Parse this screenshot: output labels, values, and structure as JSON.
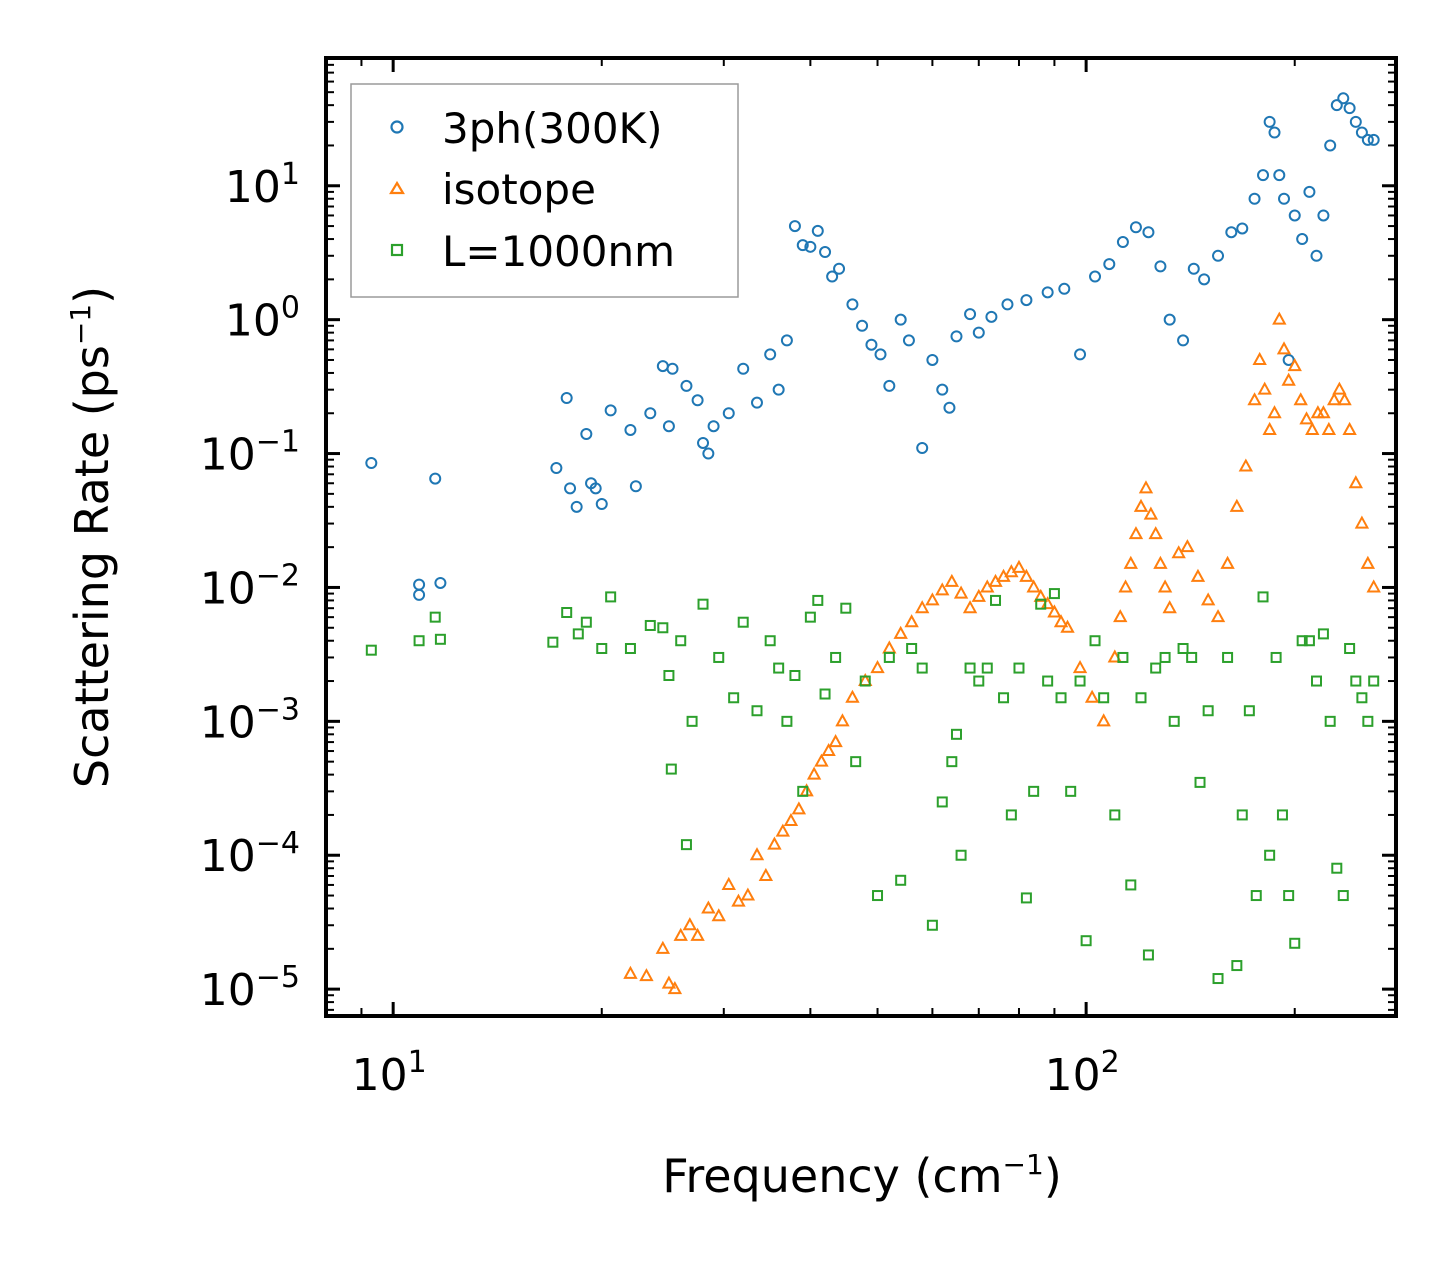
{
  "chart_data": {
    "type": "scatter",
    "title": "",
    "xlabel": "Frequency (cm",
    "xlabel_exp": "−1",
    "xlabel_close": ")",
    "ylabel": "Scattering Rate (ps",
    "ylabel_exp": "−1",
    "ylabel_close": ")",
    "xscale": "log",
    "yscale": "log",
    "xlim": [
      8,
      280
    ],
    "ylim": [
      6.3e-06,
      90
    ],
    "grid": false,
    "legend_position": "top-left",
    "x_ticks": [
      {
        "value": 10,
        "base": "10",
        "exp": "1"
      },
      {
        "value": 100,
        "base": "10",
        "exp": "2"
      }
    ],
    "y_ticks": [
      {
        "value": 10,
        "base": "10",
        "exp": "1"
      },
      {
        "value": 1,
        "base": "10",
        "exp": "0"
      },
      {
        "value": 0.1,
        "base": "10",
        "exp": "−1"
      },
      {
        "value": 0.01,
        "base": "10",
        "exp": "−2"
      },
      {
        "value": 0.001,
        "base": "10",
        "exp": "−3"
      },
      {
        "value": 0.0001,
        "base": "10",
        "exp": "−4"
      },
      {
        "value": 1e-05,
        "base": "10",
        "exp": "−5"
      }
    ],
    "series": [
      {
        "name": "3ph(300K)",
        "marker": "circle",
        "color": "#1f77b4",
        "points": [
          [
            9.3,
            0.085
          ],
          [
            10.9,
            0.0105
          ],
          [
            10.9,
            0.0088
          ],
          [
            11.5,
            0.065
          ],
          [
            11.7,
            0.0108
          ],
          [
            17.2,
            0.078
          ],
          [
            17.8,
            0.26
          ],
          [
            18.0,
            0.055
          ],
          [
            18.4,
            0.04
          ],
          [
            19.0,
            0.14
          ],
          [
            19.3,
            0.06
          ],
          [
            19.6,
            0.055
          ],
          [
            20.0,
            0.042
          ],
          [
            20.6,
            0.21
          ],
          [
            22.0,
            0.15
          ],
          [
            22.4,
            0.057
          ],
          [
            23.5,
            0.2
          ],
          [
            24.5,
            0.45
          ],
          [
            25.0,
            0.16
          ],
          [
            25.3,
            0.43
          ],
          [
            26.5,
            0.32
          ],
          [
            27.5,
            0.25
          ],
          [
            28.0,
            0.12
          ],
          [
            28.5,
            0.1
          ],
          [
            29.0,
            0.16
          ],
          [
            30.5,
            0.2
          ],
          [
            32.0,
            0.43
          ],
          [
            33.5,
            0.24
          ],
          [
            35.0,
            0.55
          ],
          [
            36.0,
            0.3
          ],
          [
            37.0,
            0.7
          ],
          [
            38.0,
            5.0
          ],
          [
            39.0,
            3.6
          ],
          [
            40.0,
            3.5
          ],
          [
            41.0,
            4.6
          ],
          [
            42.0,
            3.2
          ],
          [
            43.0,
            2.1
          ],
          [
            44.0,
            2.4
          ],
          [
            46.0,
            1.3
          ],
          [
            47.5,
            0.9
          ],
          [
            49.0,
            0.65
          ],
          [
            50.5,
            0.55
          ],
          [
            52.0,
            0.32
          ],
          [
            54.0,
            1.0
          ],
          [
            55.5,
            0.7
          ],
          [
            58.0,
            0.11
          ],
          [
            60.0,
            0.5
          ],
          [
            62.0,
            0.3
          ],
          [
            63.5,
            0.22
          ],
          [
            65.0,
            0.75
          ],
          [
            68.0,
            1.1
          ],
          [
            70.0,
            0.8
          ],
          [
            73.0,
            1.05
          ],
          [
            77.0,
            1.3
          ],
          [
            82.0,
            1.4
          ],
          [
            88.0,
            1.6
          ],
          [
            93.0,
            1.7
          ],
          [
            98.0,
            0.55
          ],
          [
            103.0,
            2.1
          ],
          [
            108.0,
            2.6
          ],
          [
            113.0,
            3.8
          ],
          [
            118.0,
            4.9
          ],
          [
            123.0,
            4.5
          ],
          [
            128.0,
            2.5
          ],
          [
            132.0,
            1.0
          ],
          [
            138.0,
            0.7
          ],
          [
            143.0,
            2.4
          ],
          [
            148.0,
            2.0
          ],
          [
            155.0,
            3.0
          ],
          [
            162.0,
            4.5
          ],
          [
            168.0,
            4.8
          ],
          [
            175.0,
            8.0
          ],
          [
            180.0,
            12
          ],
          [
            184.0,
            30
          ],
          [
            187.0,
            25
          ],
          [
            190.0,
            12
          ],
          [
            193.0,
            8
          ],
          [
            196.0,
            0.5
          ],
          [
            200.0,
            6
          ],
          [
            205.0,
            4
          ],
          [
            210.0,
            9
          ],
          [
            215.0,
            3
          ],
          [
            220.0,
            6
          ],
          [
            225.0,
            20
          ],
          [
            230.0,
            40
          ],
          [
            235.0,
            45
          ],
          [
            240.0,
            38
          ],
          [
            245.0,
            30
          ],
          [
            250.0,
            25
          ],
          [
            255.0,
            22
          ],
          [
            260.0,
            22
          ]
        ]
      },
      {
        "name": "isotope",
        "marker": "triangle",
        "color": "#ff7f0e",
        "points": [
          [
            22.0,
            1.3e-05
          ],
          [
            23.2,
            1.25e-05
          ],
          [
            24.5,
            2e-05
          ],
          [
            25.0,
            1.1e-05
          ],
          [
            25.5,
            1e-05
          ],
          [
            26.0,
            2.5e-05
          ],
          [
            26.8,
            3e-05
          ],
          [
            27.5,
            2.5e-05
          ],
          [
            28.5,
            4e-05
          ],
          [
            29.5,
            3.5e-05
          ],
          [
            30.5,
            6e-05
          ],
          [
            31.5,
            4.5e-05
          ],
          [
            32.5,
            5e-05
          ],
          [
            33.5,
            0.0001
          ],
          [
            34.5,
            7e-05
          ],
          [
            35.5,
            0.00012
          ],
          [
            36.5,
            0.00015
          ],
          [
            37.5,
            0.00018
          ],
          [
            38.5,
            0.00022
          ],
          [
            39.5,
            0.0003
          ],
          [
            40.5,
            0.0004
          ],
          [
            41.5,
            0.0005
          ],
          [
            42.5,
            0.0006
          ],
          [
            43.5,
            0.0007
          ],
          [
            44.5,
            0.001
          ],
          [
            46.0,
            0.0015
          ],
          [
            48.0,
            0.002
          ],
          [
            50.0,
            0.0025
          ],
          [
            52.0,
            0.0035
          ],
          [
            54.0,
            0.0045
          ],
          [
            56.0,
            0.0055
          ],
          [
            58.0,
            0.007
          ],
          [
            60.0,
            0.008
          ],
          [
            62.0,
            0.0095
          ],
          [
            64.0,
            0.011
          ],
          [
            66.0,
            0.009
          ],
          [
            68.0,
            0.007
          ],
          [
            70.0,
            0.0085
          ],
          [
            72.0,
            0.01
          ],
          [
            74.0,
            0.011
          ],
          [
            76.0,
            0.012
          ],
          [
            78.0,
            0.013
          ],
          [
            80.0,
            0.014
          ],
          [
            82.0,
            0.012
          ],
          [
            84.0,
            0.01
          ],
          [
            86.0,
            0.0085
          ],
          [
            88.0,
            0.0075
          ],
          [
            90.0,
            0.0065
          ],
          [
            92.0,
            0.0055
          ],
          [
            94.0,
            0.005
          ],
          [
            98.0,
            0.0025
          ],
          [
            102.0,
            0.0015
          ],
          [
            106.0,
            0.001
          ],
          [
            110.0,
            0.003
          ],
          [
            112.0,
            0.006
          ],
          [
            114.0,
            0.01
          ],
          [
            116.0,
            0.015
          ],
          [
            118.0,
            0.025
          ],
          [
            120.0,
            0.04
          ],
          [
            122.0,
            0.055
          ],
          [
            124.0,
            0.035
          ],
          [
            126.0,
            0.025
          ],
          [
            128.0,
            0.015
          ],
          [
            130.0,
            0.01
          ],
          [
            132.0,
            0.007
          ],
          [
            136.0,
            0.018
          ],
          [
            140.0,
            0.02
          ],
          [
            145.0,
            0.012
          ],
          [
            150.0,
            0.008
          ],
          [
            155.0,
            0.006
          ],
          [
            160.0,
            0.015
          ],
          [
            165.0,
            0.04
          ],
          [
            170.0,
            0.08
          ],
          [
            175.0,
            0.25
          ],
          [
            178.0,
            0.5
          ],
          [
            181.0,
            0.3
          ],
          [
            184.0,
            0.15
          ],
          [
            187.0,
            0.2
          ],
          [
            190.0,
            1.0
          ],
          [
            193.0,
            0.6
          ],
          [
            196.0,
            0.35
          ],
          [
            200.0,
            0.45
          ],
          [
            204.0,
            0.25
          ],
          [
            208.0,
            0.18
          ],
          [
            212.0,
            0.15
          ],
          [
            216.0,
            0.2
          ],
          [
            220.0,
            0.2
          ],
          [
            224.0,
            0.15
          ],
          [
            228.0,
            0.25
          ],
          [
            232.0,
            0.3
          ],
          [
            236.0,
            0.25
          ],
          [
            240.0,
            0.15
          ],
          [
            245.0,
            0.06
          ],
          [
            250.0,
            0.03
          ],
          [
            255.0,
            0.015
          ],
          [
            260.0,
            0.01
          ]
        ]
      },
      {
        "name": "L=1000nm",
        "marker": "square",
        "color": "#2ca02c",
        "points": [
          [
            9.3,
            0.0034
          ],
          [
            10.9,
            0.004
          ],
          [
            11.5,
            0.006
          ],
          [
            11.7,
            0.0041
          ],
          [
            17.0,
            0.0039
          ],
          [
            17.8,
            0.0065
          ],
          [
            18.5,
            0.0045
          ],
          [
            19.0,
            0.0055
          ],
          [
            20.0,
            0.0035
          ],
          [
            20.6,
            0.0085
          ],
          [
            22.0,
            0.0035
          ],
          [
            23.5,
            0.0052
          ],
          [
            24.5,
            0.005
          ],
          [
            25.0,
            0.0022
          ],
          [
            25.2,
            0.00044
          ],
          [
            26.0,
            0.004
          ],
          [
            26.5,
            0.00012
          ],
          [
            27.0,
            0.001
          ],
          [
            28.0,
            0.0075
          ],
          [
            29.5,
            0.003
          ],
          [
            31.0,
            0.0015
          ],
          [
            32.0,
            0.0055
          ],
          [
            33.5,
            0.0012
          ],
          [
            35.0,
            0.004
          ],
          [
            36.0,
            0.0025
          ],
          [
            37.0,
            0.001
          ],
          [
            38.0,
            0.0022
          ],
          [
            39.0,
            0.0003
          ],
          [
            40.0,
            0.006
          ],
          [
            41.0,
            0.008
          ],
          [
            42.0,
            0.0016
          ],
          [
            43.5,
            0.003
          ],
          [
            45.0,
            0.007
          ],
          [
            46.5,
            0.0005
          ],
          [
            48.0,
            0.002
          ],
          [
            50.0,
            5e-05
          ],
          [
            52.0,
            0.003
          ],
          [
            54.0,
            6.5e-05
          ],
          [
            56.0,
            0.0035
          ],
          [
            58.0,
            0.0025
          ],
          [
            60.0,
            3e-05
          ],
          [
            62.0,
            0.00025
          ],
          [
            64.0,
            0.0005
          ],
          [
            65.0,
            0.0008
          ],
          [
            66.0,
            0.0001
          ],
          [
            68.0,
            0.0025
          ],
          [
            70.0,
            0.002
          ],
          [
            72.0,
            0.0025
          ],
          [
            74.0,
            0.008
          ],
          [
            76.0,
            0.0015
          ],
          [
            78.0,
            0.0002
          ],
          [
            80.0,
            0.0025
          ],
          [
            82.0,
            4.8e-05
          ],
          [
            84.0,
            0.0003
          ],
          [
            86.0,
            0.0075
          ],
          [
            88.0,
            0.002
          ],
          [
            90.0,
            0.009
          ],
          [
            92.0,
            0.0015
          ],
          [
            95.0,
            0.0003
          ],
          [
            98.0,
            0.002
          ],
          [
            100.0,
            2.3e-05
          ],
          [
            103.0,
            0.004
          ],
          [
            106.0,
            0.0015
          ],
          [
            110.0,
            0.0002
          ],
          [
            113.0,
            0.003
          ],
          [
            116.0,
            6e-05
          ],
          [
            120.0,
            0.0015
          ],
          [
            123.0,
            1.8e-05
          ],
          [
            126.0,
            0.0025
          ],
          [
            130.0,
            0.003
          ],
          [
            134.0,
            0.001
          ],
          [
            138.0,
            0.0035
          ],
          [
            142.0,
            0.003
          ],
          [
            146.0,
            0.00035
          ],
          [
            150.0,
            0.0012
          ],
          [
            155.0,
            1.2e-05
          ],
          [
            160.0,
            0.003
          ],
          [
            165.0,
            1.5e-05
          ],
          [
            168.0,
            0.0002
          ],
          [
            172.0,
            0.0012
          ],
          [
            176.0,
            5e-05
          ],
          [
            180.0,
            0.0085
          ],
          [
            184.0,
            0.0001
          ],
          [
            188.0,
            0.003
          ],
          [
            192.0,
            0.0002
          ],
          [
            196.0,
            5e-05
          ],
          [
            200.0,
            2.2e-05
          ],
          [
            205.0,
            0.004
          ],
          [
            210.0,
            0.004
          ],
          [
            215.0,
            0.002
          ],
          [
            220.0,
            0.0045
          ],
          [
            225.0,
            0.001
          ],
          [
            230.0,
            8e-05
          ],
          [
            235.0,
            5e-05
          ],
          [
            240.0,
            0.0035
          ],
          [
            245.0,
            0.002
          ],
          [
            250.0,
            0.0015
          ],
          [
            255.0,
            0.001
          ],
          [
            260.0,
            0.002
          ]
        ]
      }
    ]
  }
}
